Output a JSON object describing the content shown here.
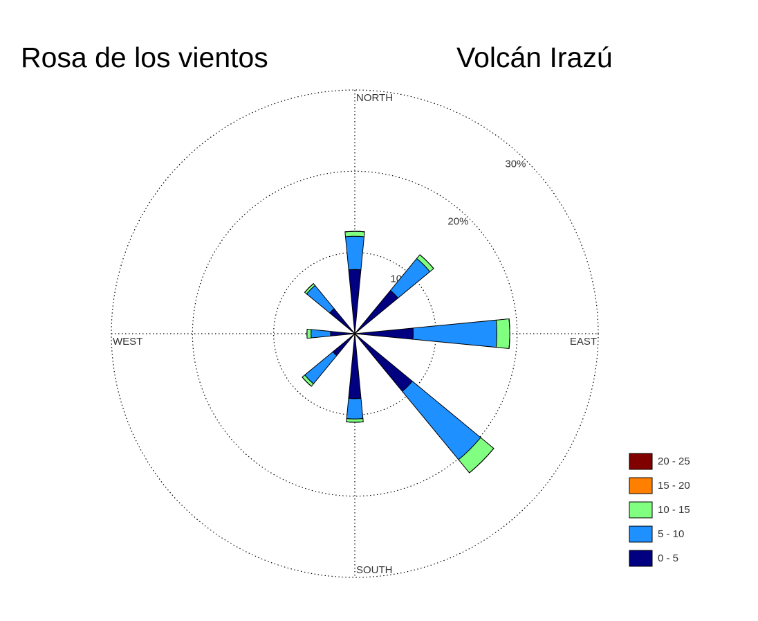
{
  "chart_data": {
    "type": "windrose",
    "title": "Rosa de los vientos",
    "subtitle": "Volcán Irazú",
    "compass_labels": [
      "NORTH",
      "EAST",
      "SOUTH",
      "WEST"
    ],
    "angles": [
      0,
      45,
      90,
      135,
      180,
      225,
      270,
      315
    ],
    "rlim": [
      0,
      30
    ],
    "rticks": [
      {
        "value": 10,
        "label": "10%"
      },
      {
        "value": 20,
        "label": "20%"
      },
      {
        "value": 30,
        "label": "30%"
      }
    ],
    "series": [
      {
        "name": "0 - 5",
        "color": "#000080",
        "values": [
          7.9,
          6.9,
          7.2,
          9.2,
          8.0,
          3.5,
          3.0,
          4.0
        ]
      },
      {
        "name": "5 - 10",
        "color": "#1e90ff",
        "values": [
          4.1,
          5.1,
          10.3,
          10.9,
          2.5,
          4.5,
          2.4,
          3.7
        ]
      },
      {
        "name": "10 - 15",
        "color": "#80ff80",
        "values": [
          0.6,
          0.6,
          1.6,
          2.1,
          0.4,
          0.4,
          0.5,
          0.3
        ]
      },
      {
        "name": "15 - 20",
        "color": "#ff8000",
        "values": [
          0,
          0,
          0,
          0,
          0,
          0,
          0,
          0
        ]
      },
      {
        "name": "20 - 25",
        "color": "#800000",
        "values": [
          0,
          0,
          0,
          0,
          0,
          0,
          0,
          0
        ]
      }
    ]
  }
}
